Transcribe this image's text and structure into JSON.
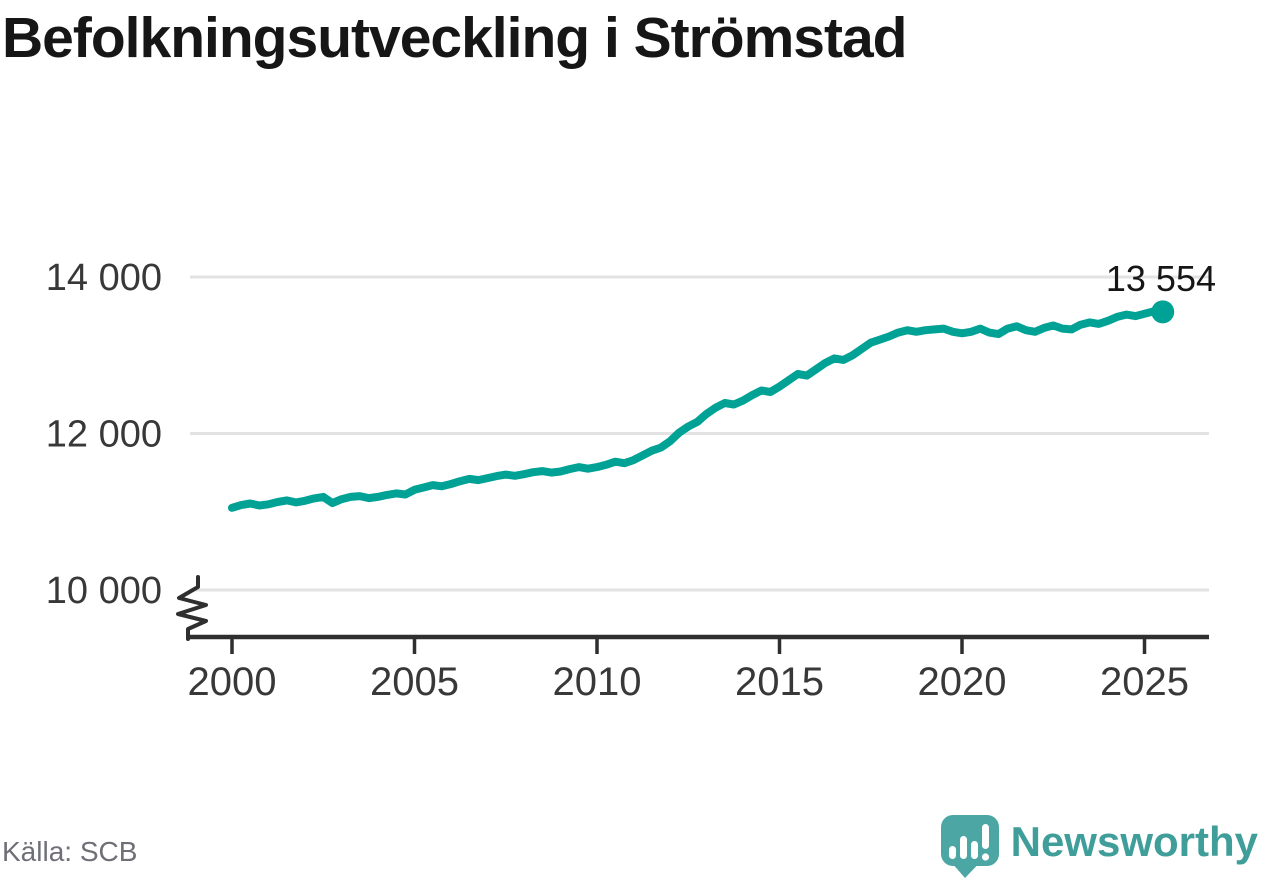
{
  "title": "Befolkningsutveckling i Strömstad",
  "source": "Källa: SCB",
  "branding": {
    "logo_text": "Newsworthy",
    "logo_icon": "speech-bubble-bar-chart-exclamation"
  },
  "chart_data": {
    "type": "line",
    "title": "Befolkningsutveckling i Strömstad",
    "series_name": "Befolkning i Strömstad",
    "xlabel": "",
    "ylabel": "",
    "grid": "horizontal",
    "axis_break_below": 10000,
    "xlim": [
      1998.8,
      2026.9
    ],
    "ylim": [
      9500,
      14400
    ],
    "x_ticks": [
      2000,
      2005,
      2010,
      2015,
      2020,
      2025
    ],
    "x_tick_labels": [
      "2000",
      "2005",
      "2010",
      "2015",
      "2020",
      "2025"
    ],
    "y_ticks": [
      14000,
      12000,
      10000
    ],
    "y_tick_labels": [
      "14 000",
      "12 000",
      "10 000"
    ],
    "end_value": 13554,
    "end_label": "13 554",
    "x": [
      2000.0,
      2000.25,
      2000.5,
      2000.75,
      2001.0,
      2001.25,
      2001.5,
      2001.75,
      2002.0,
      2002.25,
      2002.5,
      2002.75,
      2003.0,
      2003.25,
      2003.5,
      2003.75,
      2004.0,
      2004.25,
      2004.5,
      2004.75,
      2005.0,
      2005.25,
      2005.5,
      2005.75,
      2006.0,
      2006.25,
      2006.5,
      2006.75,
      2007.0,
      2007.25,
      2007.5,
      2007.75,
      2008.0,
      2008.25,
      2008.5,
      2008.75,
      2009.0,
      2009.25,
      2009.5,
      2009.75,
      2010.0,
      2010.25,
      2010.5,
      2010.75,
      2011.0,
      2011.25,
      2011.5,
      2011.75,
      2012.0,
      2012.25,
      2012.5,
      2012.75,
      2013.0,
      2013.25,
      2013.5,
      2013.75,
      2014.0,
      2014.25,
      2014.5,
      2014.75,
      2015.0,
      2015.25,
      2015.5,
      2015.75,
      2016.0,
      2016.25,
      2016.5,
      2016.75,
      2017.0,
      2017.25,
      2017.5,
      2017.75,
      2018.0,
      2018.25,
      2018.5,
      2018.75,
      2019.0,
      2019.25,
      2019.5,
      2019.75,
      2020.0,
      2020.25,
      2020.5,
      2020.75,
      2021.0,
      2021.25,
      2021.5,
      2021.75,
      2022.0,
      2022.25,
      2022.5,
      2022.75,
      2023.0,
      2023.25,
      2023.5,
      2023.75,
      2024.0,
      2024.25,
      2024.5,
      2024.75,
      2025.0,
      2025.25,
      2025.5
    ],
    "values": [
      11050,
      11085,
      11105,
      11080,
      11095,
      11125,
      11145,
      11120,
      11140,
      11170,
      11190,
      11110,
      11160,
      11190,
      11200,
      11175,
      11190,
      11215,
      11235,
      11220,
      11280,
      11310,
      11340,
      11325,
      11355,
      11390,
      11420,
      11405,
      11430,
      11455,
      11475,
      11460,
      11480,
      11505,
      11520,
      11500,
      11515,
      11545,
      11570,
      11550,
      11570,
      11600,
      11640,
      11620,
      11660,
      11720,
      11780,
      11820,
      11900,
      12010,
      12090,
      12150,
      12250,
      12330,
      12390,
      12370,
      12420,
      12490,
      12550,
      12530,
      12600,
      12680,
      12760,
      12740,
      12820,
      12900,
      12960,
      12940,
      13000,
      13080,
      13160,
      13200,
      13240,
      13290,
      13320,
      13300,
      13320,
      13330,
      13340,
      13300,
      13280,
      13300,
      13340,
      13290,
      13270,
      13340,
      13370,
      13320,
      13300,
      13350,
      13380,
      13340,
      13330,
      13390,
      13420,
      13400,
      13440,
      13490,
      13520,
      13500,
      13530,
      13560,
      13554
    ],
    "colors": {
      "line": "#00a295",
      "grid": "#e3e3e3",
      "axis": "#2f2f2f",
      "tick_label": "#383838",
      "title": "#161616",
      "end_label": "#161616",
      "source": "#6f6f78",
      "brand_text": "#3f9d9a",
      "brand_icon": "#4ca6a3"
    }
  }
}
